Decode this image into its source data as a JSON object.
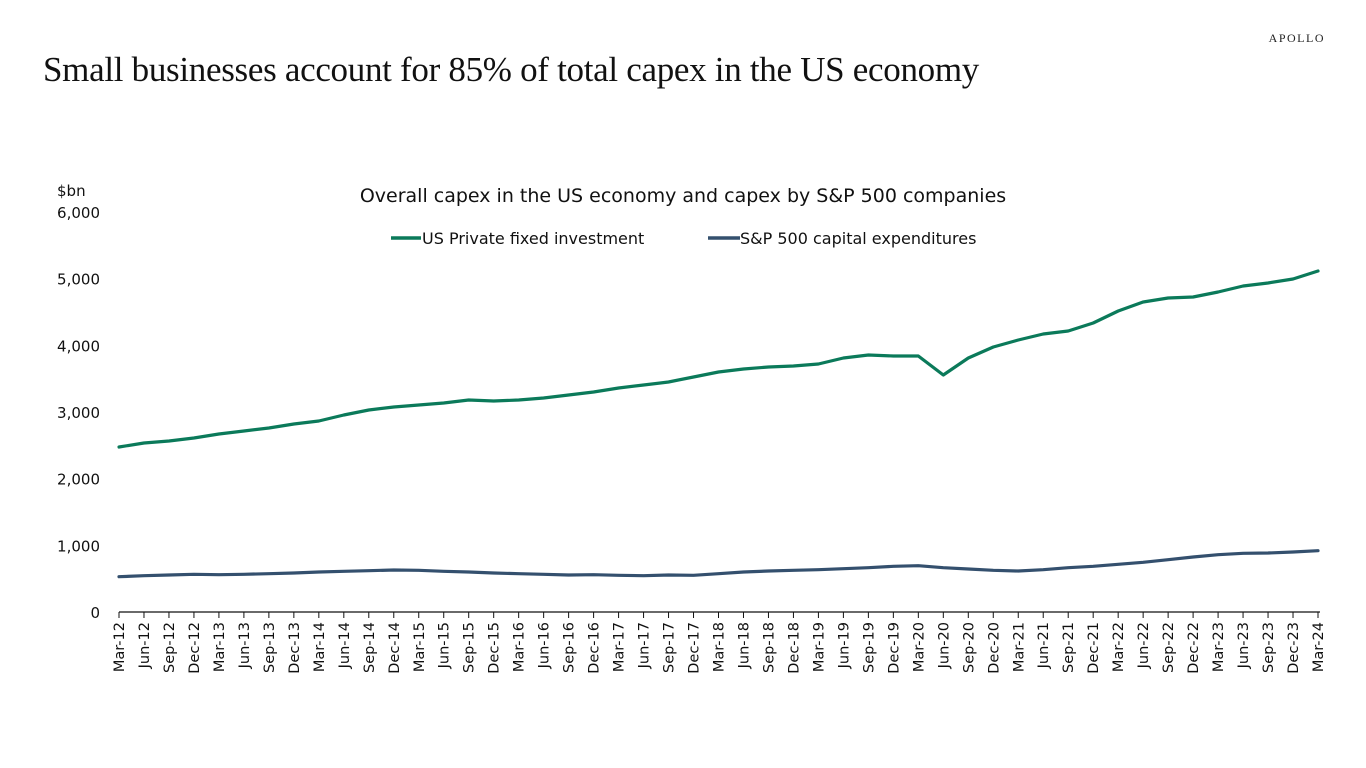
{
  "page": {
    "brand": "APOLLO",
    "headline": "Small businesses account for 85% of total capex in the US economy"
  },
  "chart_data": {
    "type": "line",
    "title": "Overall capex in the US economy and capex by S&P 500 companies",
    "xlabel": "",
    "ylabel": "$bn",
    "ylim": [
      0,
      6000
    ],
    "yticks": [
      0,
      1000,
      2000,
      3000,
      4000,
      5000,
      6000
    ],
    "ytick_labels": [
      "0",
      "1,000",
      "2,000",
      "3,000",
      "4,000",
      "5,000",
      "6,000"
    ],
    "grid": false,
    "legend_position": "top-center",
    "categories": [
      "Mar-12",
      "Jun-12",
      "Sep-12",
      "Dec-12",
      "Mar-13",
      "Jun-13",
      "Sep-13",
      "Dec-13",
      "Mar-14",
      "Jun-14",
      "Sep-14",
      "Dec-14",
      "Mar-15",
      "Jun-15",
      "Sep-15",
      "Dec-15",
      "Mar-16",
      "Jun-16",
      "Sep-16",
      "Dec-16",
      "Mar-17",
      "Jun-17",
      "Sep-17",
      "Dec-17",
      "Mar-18",
      "Jun-18",
      "Sep-18",
      "Dec-18",
      "Mar-19",
      "Jun-19",
      "Sep-19",
      "Dec-19",
      "Mar-20",
      "Jun-20",
      "Sep-20",
      "Dec-20",
      "Mar-21",
      "Jun-21",
      "Sep-21",
      "Dec-21",
      "Mar-22",
      "Jun-22",
      "Sep-22",
      "Dec-22",
      "Mar-23",
      "Jun-23",
      "Sep-23",
      "Dec-23",
      "Mar-24"
    ],
    "series": [
      {
        "name": "US Private fixed investment",
        "color": "#0b7a5a",
        "values": [
          2475,
          2535,
          2565,
          2610,
          2670,
          2715,
          2760,
          2820,
          2865,
          2955,
          3030,
          3075,
          3105,
          3135,
          3180,
          3165,
          3180,
          3210,
          3255,
          3300,
          3360,
          3405,
          3450,
          3525,
          3600,
          3645,
          3675,
          3690,
          3720,
          3810,
          3855,
          3840,
          3840,
          3555,
          3810,
          3975,
          4080,
          4170,
          4215,
          4335,
          4515,
          4650,
          4710,
          4725,
          4800,
          4890,
          4935,
          4995,
          5115
        ]
      },
      {
        "name": "S&P 500 capital expenditures",
        "color": "#34506e",
        "values": [
          530,
          545,
          555,
          565,
          560,
          565,
          575,
          585,
          600,
          610,
          620,
          630,
          625,
          610,
          600,
          585,
          575,
          565,
          555,
          560,
          550,
          545,
          555,
          550,
          575,
          600,
          615,
          625,
          635,
          650,
          665,
          685,
          695,
          665,
          645,
          625,
          615,
          635,
          665,
          685,
          715,
          745,
          785,
          825,
          860,
          880,
          885,
          900,
          920
        ]
      }
    ]
  }
}
